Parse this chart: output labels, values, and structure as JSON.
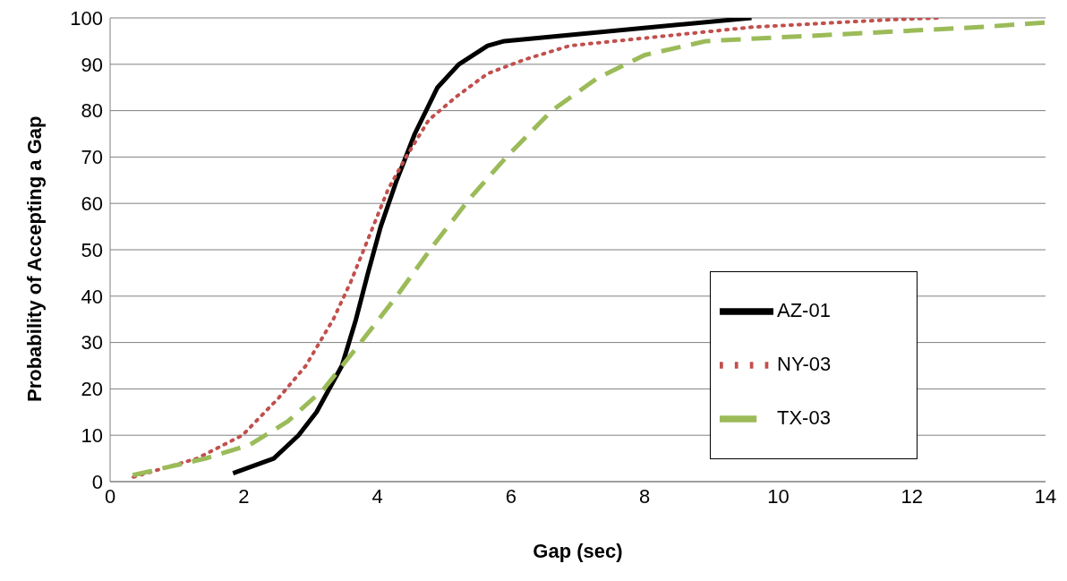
{
  "chart_data": {
    "type": "line",
    "xlabel": "Gap (sec)",
    "ylabel": "Probability of Accepting a Gap",
    "xlim": [
      0,
      14
    ],
    "xticks": [
      0,
      2,
      4,
      6,
      8,
      10,
      12,
      14
    ],
    "ylim": [
      0,
      100
    ],
    "yticks": [
      0,
      10,
      20,
      30,
      40,
      50,
      60,
      70,
      80,
      90,
      100
    ],
    "grid": "y",
    "legend": "bottom right",
    "marker": "none",
    "series": [
      {
        "name": "AZ-01",
        "color": "#000000",
        "line_style": "solid",
        "x": [
          1.84,
          2.45,
          2.82,
          3.09,
          3.47,
          3.68,
          3.86,
          4.05,
          4.29,
          4.56,
          4.9,
          5.22,
          5.65,
          5.9,
          9.6
        ],
        "values": [
          1.8,
          5,
          10,
          15,
          25,
          35,
          45,
          55,
          65,
          75,
          85,
          90,
          94,
          95,
          100
        ]
      },
      {
        "name": "NY-03",
        "color": "#c0504d",
        "line_style": "dotted",
        "x": [
          0.35,
          1.3,
          1.98,
          2.52,
          2.93,
          3.34,
          3.6,
          3.88,
          4.16,
          4.43,
          4.77,
          5.18,
          5.65,
          6.2,
          6.88,
          8.24,
          9.6,
          11.65,
          12.4
        ],
        "values": [
          1,
          5,
          10,
          18,
          25,
          35,
          43,
          53,
          63,
          70,
          78,
          83,
          88,
          91,
          94,
          96,
          98,
          99.6,
          100
        ]
      },
      {
        "name": "TX-03",
        "color": "#9bbb59",
        "line_style": "dashed",
        "x": [
          0.34,
          1.43,
          2.1,
          2.66,
          3.2,
          3.75,
          4.29,
          4.84,
          5.38,
          5.93,
          6.61,
          7.29,
          8.0,
          8.92,
          10.29,
          11.65,
          13.0,
          14
        ],
        "values": [
          1.4,
          5,
          8,
          13,
          20,
          30,
          40,
          51,
          61,
          70,
          80,
          87,
          92,
          95,
          96,
          97,
          98,
          99
        ]
      }
    ]
  }
}
